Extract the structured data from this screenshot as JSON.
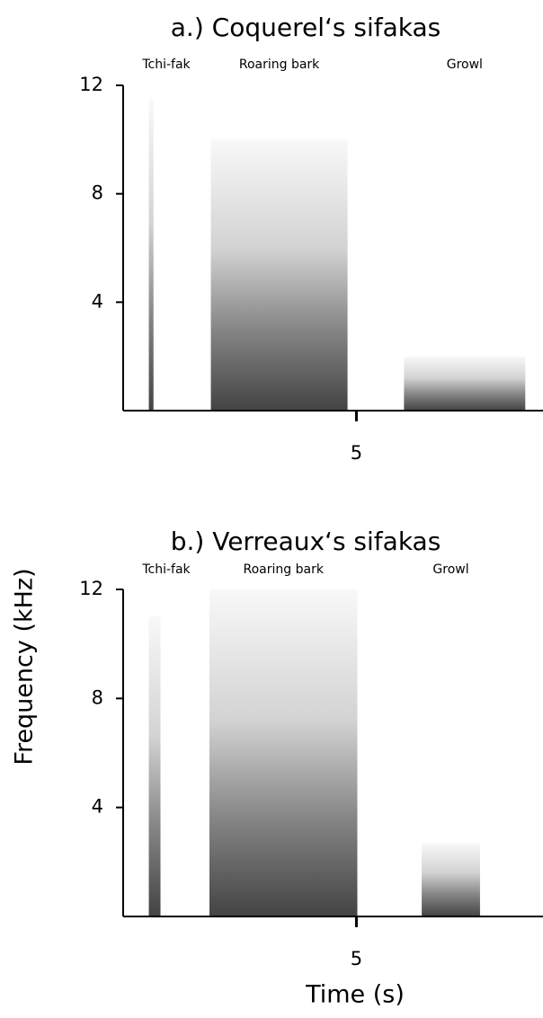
{
  "chart_data": [
    {
      "type": "spectrogram",
      "title": "a.) Coquerel‘s sifakas",
      "color": "#222222",
      "calls": [
        {
          "label": "Tchi-fak",
          "x": [
            0.55,
            0.65
          ],
          "fmax": 11.5
        },
        {
          "label": "Roaring bark",
          "x": [
            1.88,
            4.81
          ],
          "fmax": 10
        },
        {
          "label": "Growl",
          "x": [
            6.02,
            8.62
          ],
          "fmax": 2
        }
      ],
      "xlim": [
        0,
        9
      ],
      "ylim": [
        0,
        12
      ],
      "xticks": [
        5
      ],
      "yticks": [
        4,
        8,
        12
      ]
    },
    {
      "type": "spectrogram",
      "title": "b.) Verreaux‘s sifakas",
      "color": "#222222",
      "calls": [
        {
          "label": "Tchi-fak",
          "x": [
            0.55,
            0.8
          ],
          "fmax": 11
        },
        {
          "label": "Roaring bark",
          "x": [
            1.85,
            5.02
          ],
          "fmax": 12
        },
        {
          "label": "Growl",
          "x": [
            6.4,
            7.65
          ],
          "fmax": 2.7
        }
      ],
      "xlim": [
        0,
        9
      ],
      "ylim": [
        0,
        12
      ],
      "xticks": [
        5
      ],
      "yticks": [
        4,
        8,
        12
      ],
      "xlabel": "Time (s)",
      "ylabel": "Frequency (kHz)"
    }
  ]
}
